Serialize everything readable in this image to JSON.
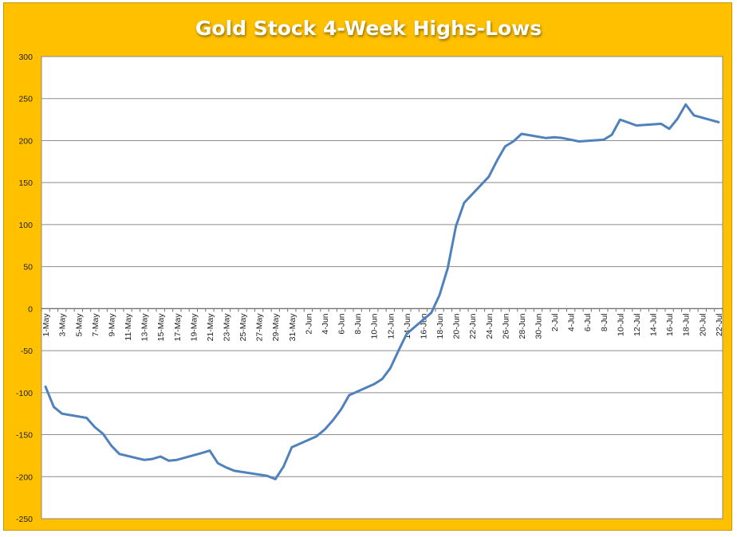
{
  "chart_data": {
    "type": "line",
    "title": "Gold Stock 4-Week Highs-Lows",
    "xlabel": "",
    "ylabel": "",
    "ylim": [
      -250,
      300
    ],
    "ytick_step": 50,
    "grid": true,
    "legend": "none",
    "colors": {
      "frame": "#ffc000",
      "plot_bg": "#ffffff",
      "line": "#4f81bd",
      "grid": "#8c8c8c"
    },
    "x": [
      "1-May",
      "2-May",
      "3-May",
      "4-May",
      "5-May",
      "6-May",
      "7-May",
      "8-May",
      "9-May",
      "10-May",
      "11-May",
      "12-May",
      "13-May",
      "14-May",
      "15-May",
      "16-May",
      "17-May",
      "18-May",
      "19-May",
      "20-May",
      "21-May",
      "22-May",
      "23-May",
      "24-May",
      "25-May",
      "26-May",
      "27-May",
      "28-May",
      "29-May",
      "30-May",
      "31-May",
      "1-Jun",
      "2-Jun",
      "3-Jun",
      "4-Jun",
      "5-Jun",
      "6-Jun",
      "7-Jun",
      "8-Jun",
      "9-Jun",
      "10-Jun",
      "11-Jun",
      "12-Jun",
      "13-Jun",
      "14-Jun",
      "15-Jun",
      "16-Jun",
      "17-Jun",
      "18-Jun",
      "19-Jun",
      "20-Jun",
      "21-Jun",
      "22-Jun",
      "23-Jun",
      "24-Jun",
      "25-Jun",
      "26-Jun",
      "27-Jun",
      "28-Jun",
      "29-Jun",
      "30-Jun",
      "1-Jul",
      "2-Jul",
      "3-Jul",
      "4-Jul",
      "5-Jul",
      "6-Jul",
      "7-Jul",
      "8-Jul",
      "9-Jul",
      "10-Jul",
      "11-Jul",
      "12-Jul",
      "13-Jul",
      "14-Jul",
      "15-Jul",
      "16-Jul",
      "17-Jul",
      "18-Jul",
      "19-Jul",
      "20-Jul",
      "21-Jul",
      "22-Jul"
    ],
    "x_tick_labels": [
      "1-May",
      "3-May",
      "5-May",
      "7-May",
      "9-May",
      "11-May",
      "13-May",
      "15-May",
      "17-May",
      "19-May",
      "21-May",
      "23-May",
      "25-May",
      "27-May",
      "29-May",
      "31-May",
      "2-Jun",
      "4-Jun",
      "6-Jun",
      "8-Jun",
      "10-Jun",
      "12-Jun",
      "14-Jun",
      "16-Jun",
      "18-Jun",
      "20-Jun",
      "22-Jun",
      "24-Jun",
      "26-Jun",
      "28-Jun",
      "30-Jun",
      "2-Jul",
      "4-Jul",
      "6-Jul",
      "8-Jul",
      "10-Jul",
      "12-Jul",
      "14-Jul",
      "16-Jul",
      "18-Jul",
      "20-Jul",
      "22-Jul"
    ],
    "series": [
      {
        "name": "",
        "points": [
          [
            "1-May",
            -93
          ],
          [
            "2-May",
            -117
          ],
          [
            "3-May",
            -125
          ],
          [
            "6-May",
            -130
          ],
          [
            "7-May",
            -141
          ],
          [
            "8-May",
            -149
          ],
          [
            "9-May",
            -163
          ],
          [
            "10-May",
            -173
          ],
          [
            "13-May",
            -180
          ],
          [
            "14-May",
            -179
          ],
          [
            "15-May",
            -176
          ],
          [
            "16-May",
            -181
          ],
          [
            "17-May",
            -180
          ],
          [
            "20-May",
            -172
          ],
          [
            "21-May",
            -169
          ],
          [
            "22-May",
            -184
          ],
          [
            "23-May",
            -189
          ],
          [
            "24-May",
            -193
          ],
          [
            "28-May",
            -199
          ],
          [
            "29-May",
            -203
          ],
          [
            "30-May",
            -188
          ],
          [
            "31-May",
            -165
          ],
          [
            "3-Jun",
            -152
          ],
          [
            "4-Jun",
            -144
          ],
          [
            "5-Jun",
            -133
          ],
          [
            "6-Jun",
            -120
          ],
          [
            "7-Jun",
            -103
          ],
          [
            "10-Jun",
            -90
          ],
          [
            "11-Jun",
            -84
          ],
          [
            "12-Jun",
            -71
          ],
          [
            "13-Jun",
            -50
          ],
          [
            "14-Jun",
            -30
          ],
          [
            "17-Jun",
            -5
          ],
          [
            "18-Jun",
            16
          ],
          [
            "19-Jun",
            48
          ],
          [
            "20-Jun",
            98
          ],
          [
            "21-Jun",
            126
          ],
          [
            "24-Jun",
            157
          ],
          [
            "25-Jun",
            176
          ],
          [
            "26-Jun",
            193
          ],
          [
            "27-Jun",
            199
          ],
          [
            "28-Jun",
            208
          ],
          [
            "1-Jul",
            203
          ],
          [
            "2-Jul",
            204
          ],
          [
            "3-Jul",
            203
          ],
          [
            "5-Jul",
            199
          ],
          [
            "8-Jul",
            201
          ],
          [
            "9-Jul",
            207
          ],
          [
            "10-Jul",
            225
          ],
          [
            "12-Jul",
            218
          ],
          [
            "15-Jul",
            220
          ],
          [
            "16-Jul",
            214
          ],
          [
            "17-Jul",
            226
          ],
          [
            "18-Jul",
            243
          ],
          [
            "19-Jul",
            230
          ],
          [
            "22-Jul",
            222
          ]
        ]
      }
    ]
  }
}
